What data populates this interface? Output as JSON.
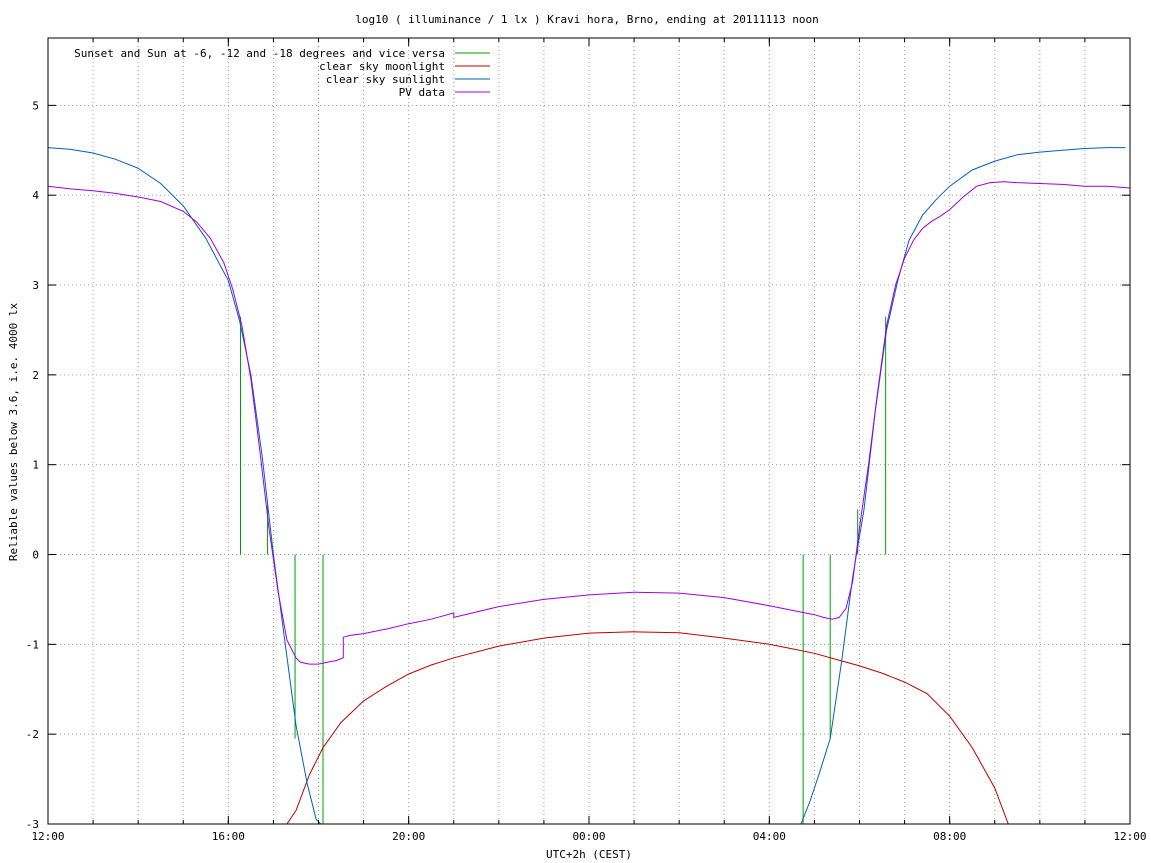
{
  "chart_data": {
    "type": "line",
    "title": "log10 ( illuminance / 1 lx ) Kravi hora, Brno, ending at 20111113 noon",
    "xlabel": "UTC+2h (CEST)",
    "ylabel": "Reliable values below 3.6, i.e. 4000 lx",
    "x_unit": "hours after 12:00 (UTC+2h)",
    "xlim": [
      0,
      24
    ],
    "ylim": [
      -3,
      5.75
    ],
    "x_ticks": [
      {
        "x": 0,
        "label": "12:00"
      },
      {
        "x": 4,
        "label": "16:00"
      },
      {
        "x": 8,
        "label": "20:00"
      },
      {
        "x": 12,
        "label": "00:00"
      },
      {
        "x": 16,
        "label": "04:00"
      },
      {
        "x": 20,
        "label": "08:00"
      },
      {
        "x": 24,
        "label": "12:00"
      }
    ],
    "y_ticks": [
      {
        "y": -3,
        "label": "-3"
      },
      {
        "y": -2,
        "label": "-2"
      },
      {
        "y": -1,
        "label": "-1"
      },
      {
        "y": 0,
        "label": "0"
      },
      {
        "y": 1,
        "label": "1"
      },
      {
        "y": 2,
        "label": "2"
      },
      {
        "y": 3,
        "label": "3"
      },
      {
        "y": 4,
        "label": "4"
      },
      {
        "y": 5,
        "label": "5"
      }
    ],
    "grid": true,
    "legend_position": "top-left",
    "series": [
      {
        "name": "Sunset and Sun at -6, -12 and -18 degrees and vice versa",
        "color": "#00a000",
        "style": "vertical-markers",
        "markers": [
          {
            "x": 4.27,
            "top": 2.65,
            "bottom": 0
          },
          {
            "x": 4.87,
            "top": 0.55,
            "bottom": 0
          },
          {
            "x": 5.48,
            "top": 0,
            "bottom": -2.05
          },
          {
            "x": 6.1,
            "top": 0,
            "bottom": -3
          }
        ],
        "markers_morning": [
          {
            "x": 16.75,
            "top": 0,
            "bottom": -3
          },
          {
            "x": 17.35,
            "top": 0,
            "bottom": -2.05
          },
          {
            "x": 17.96,
            "top": 0.5,
            "bottom": 0
          },
          {
            "x": 18.58,
            "top": 2.65,
            "bottom": 0
          }
        ]
      },
      {
        "name": "clear sky moonlight",
        "color": "#c00000",
        "x": [
          5.3,
          5.5,
          5.8,
          6.1,
          6.5,
          7.0,
          7.5,
          8.0,
          8.5,
          9.0,
          10.0,
          11.0,
          12.0,
          13.0,
          14.0,
          15.0,
          16.0,
          16.5,
          17.0,
          17.5,
          18.0,
          18.5,
          19.0,
          19.5,
          20.0,
          20.5,
          21.0,
          21.3
        ],
        "values": [
          -3.0,
          -2.85,
          -2.45,
          -2.15,
          -1.87,
          -1.63,
          -1.47,
          -1.33,
          -1.23,
          -1.15,
          -1.02,
          -0.93,
          -0.875,
          -0.86,
          -0.87,
          -0.93,
          -1.0,
          -1.05,
          -1.1,
          -1.17,
          -1.24,
          -1.32,
          -1.42,
          -1.55,
          -1.8,
          -2.15,
          -2.6,
          -3.0
        ]
      },
      {
        "name": "clear sky sunlight",
        "color": "#0060c0",
        "x": [
          0,
          0.5,
          1.0,
          1.5,
          2.0,
          2.5,
          3.0,
          3.5,
          4.0,
          4.25,
          4.5,
          4.75,
          5.0,
          5.25,
          5.5,
          5.75,
          5.95,
          6.05,
          16.7,
          16.9,
          17.1,
          17.35,
          17.6,
          17.85,
          18.1,
          18.35,
          18.6,
          18.85,
          19.1,
          19.4,
          19.7,
          20.0,
          20.5,
          21.0,
          21.5,
          22.0,
          22.5,
          23.0,
          23.5,
          23.9
        ],
        "values": [
          4.53,
          4.51,
          4.47,
          4.4,
          4.3,
          4.13,
          3.88,
          3.52,
          3.05,
          2.6,
          2.0,
          1.1,
          0.0,
          -0.95,
          -1.9,
          -2.55,
          -2.95,
          -3.0,
          -3.0,
          -2.75,
          -2.45,
          -2.05,
          -1.2,
          -0.25,
          0.5,
          1.6,
          2.5,
          3.05,
          3.5,
          3.78,
          3.95,
          4.1,
          4.28,
          4.38,
          4.45,
          4.48,
          4.5,
          4.52,
          4.53,
          4.53
        ]
      },
      {
        "name": "PV data",
        "color": "#a000e0",
        "x": [
          0,
          0.5,
          1.0,
          1.5,
          2.0,
          2.5,
          3.0,
          3.3,
          3.6,
          3.9,
          4.1,
          4.3,
          4.5,
          4.7,
          4.9,
          5.1,
          5.3,
          5.5,
          5.6,
          5.8,
          6.0,
          6.2,
          6.4,
          6.55,
          6.55,
          6.7,
          7.0,
          7.5,
          8.0,
          8.5,
          9.0,
          9.0,
          9.5,
          10.0,
          11.0,
          12.0,
          13.0,
          14.0,
          15.0,
          16.0,
          16.5,
          17.0,
          17.2,
          17.4,
          17.55,
          17.7,
          17.85,
          18.0,
          18.2,
          18.4,
          18.6,
          18.8,
          19.0,
          19.2,
          19.4,
          19.6,
          19.8,
          20.0,
          20.3,
          20.6,
          20.9,
          21.2,
          21.5,
          22.0,
          22.5,
          23.0,
          23.5,
          24.0
        ],
        "values": [
          4.1,
          4.07,
          4.05,
          4.02,
          3.98,
          3.93,
          3.82,
          3.7,
          3.52,
          3.25,
          2.95,
          2.55,
          1.95,
          1.15,
          0.3,
          -0.4,
          -0.95,
          -1.15,
          -1.2,
          -1.22,
          -1.22,
          -1.2,
          -1.18,
          -1.15,
          -0.92,
          -0.9,
          -0.88,
          -0.83,
          -0.77,
          -0.72,
          -0.65,
          -0.7,
          -0.64,
          -0.58,
          -0.5,
          -0.45,
          -0.42,
          -0.43,
          -0.48,
          -0.57,
          -0.62,
          -0.67,
          -0.7,
          -0.72,
          -0.7,
          -0.6,
          -0.3,
          0.3,
          1.0,
          1.8,
          2.55,
          3.0,
          3.3,
          3.5,
          3.63,
          3.71,
          3.77,
          3.84,
          3.98,
          4.1,
          4.14,
          4.15,
          4.14,
          4.13,
          4.12,
          4.1,
          4.1,
          4.08
        ]
      }
    ]
  }
}
